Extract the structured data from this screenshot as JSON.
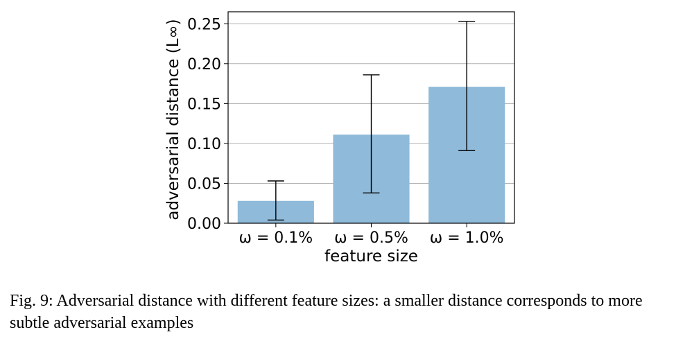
{
  "chart_data": {
    "type": "bar",
    "categories": [
      "ω = 0.1%",
      "ω = 0.5%",
      "ω = 1.0%"
    ],
    "values": [
      0.028,
      0.111,
      0.171
    ],
    "error_low": [
      0.004,
      0.038,
      0.091
    ],
    "error_high": [
      0.053,
      0.186,
      0.253
    ],
    "xlabel": "feature size",
    "ylabel": "adversarial distance (L∞)",
    "ylim": [
      0,
      0.265
    ],
    "yticks": [
      0.0,
      0.05,
      0.1,
      0.15,
      0.2,
      0.25
    ],
    "ytick_labels": [
      "0.00",
      "0.05",
      "0.10",
      "0.15",
      "0.20",
      "0.25"
    ],
    "grid": "horizontal",
    "bar_color": "#8fbad9"
  },
  "caption": "Fig. 9: Adversarial distance with different feature sizes: a smaller distance corresponds to more subtle adversarial examples"
}
